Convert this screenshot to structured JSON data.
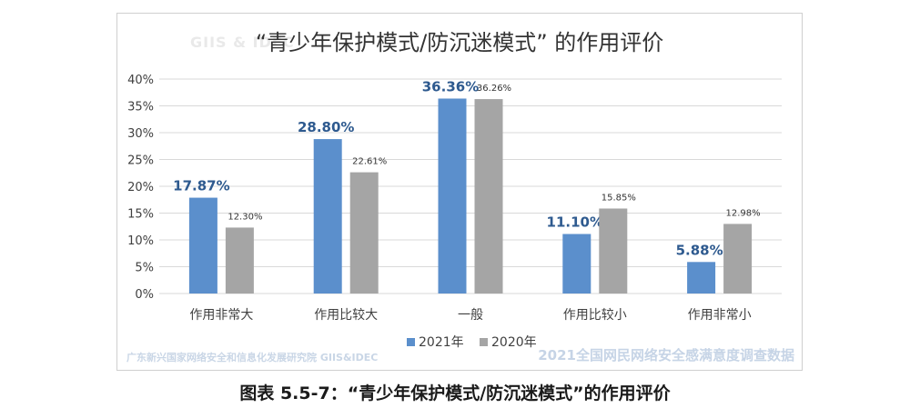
{
  "watermark_top": "GIIS & IDEC",
  "footer_left": "广东新兴国家网络安全和信息化发展研究院  GIIS&IDEC",
  "footer_right": "2021全国网民网络安全感满意度调查数据",
  "caption": "图表 5.5-7：“青少年保护模式/防沉迷模式”的作用评价",
  "colors": {
    "series_2021": "#5b8fcc",
    "series_2020": "#a5a5a5",
    "label_2021": "#2e5a8f",
    "grid": "#d9d9d9",
    "axis_text": "#404040"
  },
  "chart_data": {
    "type": "bar",
    "title": "“青少年保护模式/防沉迷模式” 的作用评价",
    "categories": [
      "作用非常大",
      "作用比较大",
      "一般",
      "作用比较小",
      "作用非常小"
    ],
    "series": [
      {
        "name": "2021年",
        "values": [
          17.87,
          28.8,
          36.36,
          11.1,
          5.88
        ],
        "labels": [
          "17.87%",
          "28.80%",
          "36.36%",
          "11.10%",
          "5.88%"
        ]
      },
      {
        "name": "2020年",
        "values": [
          12.3,
          22.61,
          36.26,
          15.85,
          12.98
        ],
        "labels": [
          "12.30%",
          "22.61%",
          "36.26%",
          "15.85%",
          "12.98%"
        ]
      }
    ],
    "yticks": [
      "0%",
      "5%",
      "10%",
      "15%",
      "20%",
      "25%",
      "30%",
      "35%",
      "40%"
    ],
    "ylim": [
      0,
      40
    ],
    "grid": true,
    "legend_position": "bottom"
  }
}
